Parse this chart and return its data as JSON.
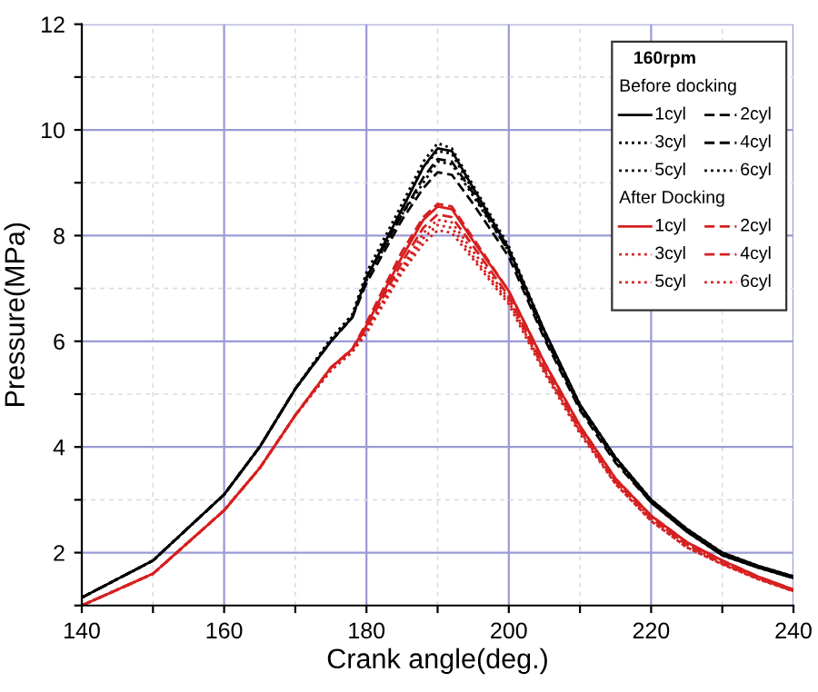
{
  "chart_data": {
    "type": "line",
    "xlabel": "Crank angle(deg.)",
    "ylabel": "Pressure(MPa)",
    "legend_title": "160rpm",
    "annotations": [
      "Before docking",
      "After Docking"
    ],
    "x": [
      140,
      150,
      160,
      165,
      170,
      175,
      178,
      180,
      185,
      188,
      190,
      192,
      195,
      200,
      205,
      210,
      215,
      220,
      225,
      230,
      235,
      240
    ],
    "xlim": [
      140,
      240
    ],
    "ylim": [
      1,
      12
    ],
    "xticks": [
      140,
      {
        "value": 150,
        "label": null
      },
      160,
      {
        "value": 170,
        "label": null
      },
      180,
      {
        "value": 190,
        "label": null
      },
      200,
      {
        "value": 210,
        "label": null
      },
      220,
      {
        "value": 230,
        "label": null
      },
      240
    ],
    "yticks": [
      {
        "value": 1,
        "label": null
      },
      2,
      {
        "value": 3,
        "label": null
      },
      4,
      {
        "value": 5,
        "label": null
      },
      6,
      {
        "value": 7,
        "label": null
      },
      8,
      {
        "value": 9,
        "label": null
      },
      10,
      {
        "value": 11,
        "label": null
      },
      12
    ],
    "grid": true,
    "legend": "top right",
    "marker": "none",
    "series": [
      {
        "name": "1cyl",
        "color": "#000000",
        "line_style": "solid",
        "values": [
          1.15,
          1.85,
          3.1,
          4.0,
          5.1,
          6.0,
          6.45,
          7.2,
          8.5,
          9.3,
          9.65,
          9.6,
          8.9,
          7.75,
          6.2,
          4.8,
          3.8,
          3.0,
          2.45,
          2.0,
          1.75,
          1.55
        ]
      },
      {
        "name": "2cyl",
        "color": "#000000",
        "line_style": "dashed",
        "values": [
          1.15,
          1.85,
          3.1,
          4.0,
          5.1,
          6.0,
          6.45,
          7.2,
          8.4,
          9.1,
          9.45,
          9.4,
          8.8,
          7.7,
          6.1,
          4.75,
          3.75,
          2.95,
          2.4,
          1.95,
          1.72,
          1.52
        ]
      },
      {
        "name": "3cyl",
        "color": "#000000",
        "line_style": "dotted",
        "values": [
          1.15,
          1.85,
          3.1,
          4.0,
          5.1,
          6.05,
          6.5,
          7.3,
          8.6,
          9.4,
          9.75,
          9.65,
          8.95,
          7.8,
          6.2,
          4.8,
          3.8,
          3.0,
          2.45,
          2.0,
          1.75,
          1.55
        ]
      },
      {
        "name": "4cyl",
        "color": "#000000",
        "line_style": "dashed",
        "values": [
          1.15,
          1.85,
          3.1,
          4.0,
          5.1,
          6.0,
          6.45,
          7.1,
          8.3,
          8.9,
          9.2,
          9.15,
          8.6,
          7.6,
          6.05,
          4.7,
          3.7,
          2.95,
          2.4,
          1.95,
          1.72,
          1.52
        ]
      },
      {
        "name": "5cyl",
        "color": "#000000",
        "line_style": "dotted",
        "values": [
          1.15,
          1.85,
          3.1,
          4.0,
          5.1,
          6.0,
          6.45,
          7.15,
          8.4,
          9.0,
          9.4,
          9.35,
          8.75,
          7.7,
          6.1,
          4.75,
          3.75,
          2.95,
          2.4,
          1.95,
          1.72,
          1.52
        ]
      },
      {
        "name": "6cyl",
        "color": "#000000",
        "line_style": "dotted",
        "values": [
          1.15,
          1.85,
          3.1,
          4.0,
          5.1,
          6.05,
          6.5,
          7.25,
          8.5,
          9.3,
          9.6,
          9.55,
          8.85,
          7.75,
          6.15,
          4.8,
          3.8,
          3.0,
          2.45,
          2.0,
          1.75,
          1.55
        ]
      },
      {
        "name": "1cyl",
        "color": "#d62020",
        "line_style": "solid",
        "values": [
          1.0,
          1.6,
          2.8,
          3.6,
          4.6,
          5.5,
          5.85,
          6.3,
          7.6,
          8.3,
          8.55,
          8.5,
          7.9,
          6.95,
          5.6,
          4.4,
          3.4,
          2.7,
          2.2,
          1.85,
          1.55,
          1.3
        ]
      },
      {
        "name": "2cyl",
        "color": "#d62020",
        "line_style": "dashed",
        "values": [
          1.0,
          1.6,
          2.8,
          3.6,
          4.6,
          5.5,
          5.85,
          6.35,
          7.7,
          8.35,
          8.6,
          8.55,
          7.95,
          6.95,
          5.6,
          4.4,
          3.4,
          2.7,
          2.2,
          1.85,
          1.55,
          1.3
        ]
      },
      {
        "name": "3cyl",
        "color": "#d62020",
        "line_style": "dotted",
        "values": [
          1.0,
          1.6,
          2.8,
          3.6,
          4.6,
          5.45,
          5.8,
          6.2,
          7.4,
          8.05,
          8.3,
          8.25,
          7.7,
          6.8,
          5.45,
          4.3,
          3.35,
          2.65,
          2.15,
          1.8,
          1.52,
          1.28
        ]
      },
      {
        "name": "4cyl",
        "color": "#d62020",
        "line_style": "dashed",
        "values": [
          1.0,
          1.6,
          2.8,
          3.6,
          4.6,
          5.5,
          5.85,
          6.25,
          7.5,
          8.15,
          8.4,
          8.35,
          7.8,
          6.85,
          5.5,
          4.35,
          3.35,
          2.65,
          2.15,
          1.8,
          1.52,
          1.28
        ]
      },
      {
        "name": "5cyl",
        "color": "#d62020",
        "line_style": "dotted",
        "values": [
          1.0,
          1.6,
          2.8,
          3.6,
          4.6,
          5.45,
          5.8,
          6.15,
          7.3,
          7.85,
          8.1,
          8.05,
          7.55,
          6.7,
          5.4,
          4.25,
          3.3,
          2.6,
          2.1,
          1.78,
          1.5,
          1.27
        ]
      },
      {
        "name": "6cyl",
        "color": "#d62020",
        "line_style": "dotted",
        "values": [
          1.0,
          1.6,
          2.8,
          3.6,
          4.6,
          5.45,
          5.8,
          6.2,
          7.35,
          7.95,
          8.2,
          8.15,
          7.6,
          6.75,
          5.45,
          4.3,
          3.3,
          2.6,
          2.1,
          1.78,
          1.5,
          1.27
        ]
      }
    ]
  }
}
